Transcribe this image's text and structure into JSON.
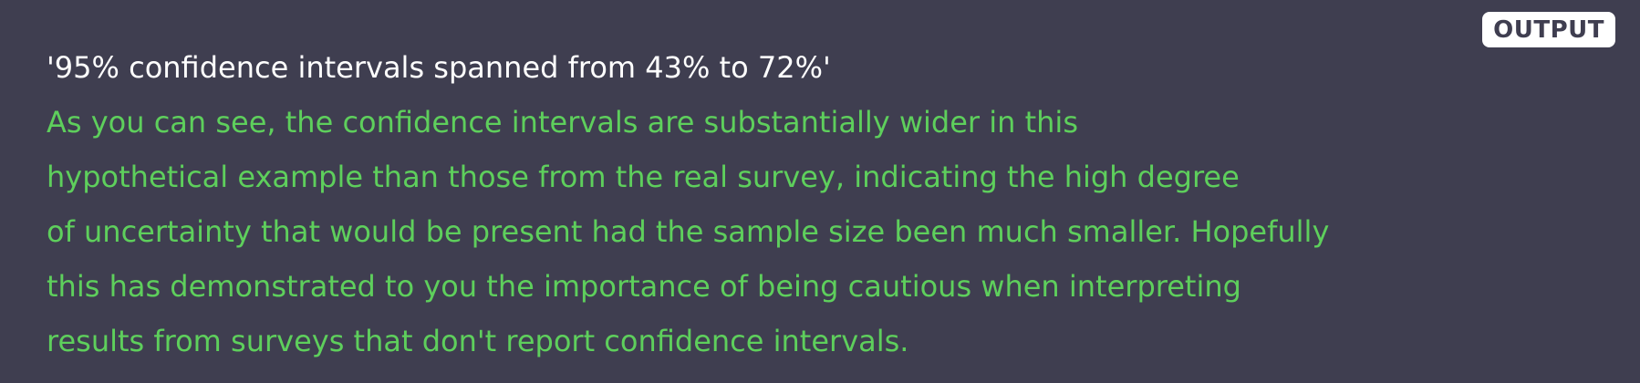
{
  "badge": {
    "label": "OUTPUT"
  },
  "output": {
    "result_line": "'95% confidence intervals spanned from 43% to 72%'",
    "message_lines": [
      "As you can see, the confidence intervals are substantially wider in this",
      "hypothetical example than those from the real survey, indicating the high degree",
      "of uncertainty that would be present had the sample size been much smaller. Hopefully",
      "this has demonstrated to you the importance of being cautious when interpreting",
      "results from surveys that don't report confidence intervals."
    ]
  },
  "colors": {
    "background": "#3f3e50",
    "result_text": "#ffffff",
    "message_text": "#5ecf5c",
    "badge_background": "#ffffff",
    "badge_text": "#3f3e50"
  }
}
